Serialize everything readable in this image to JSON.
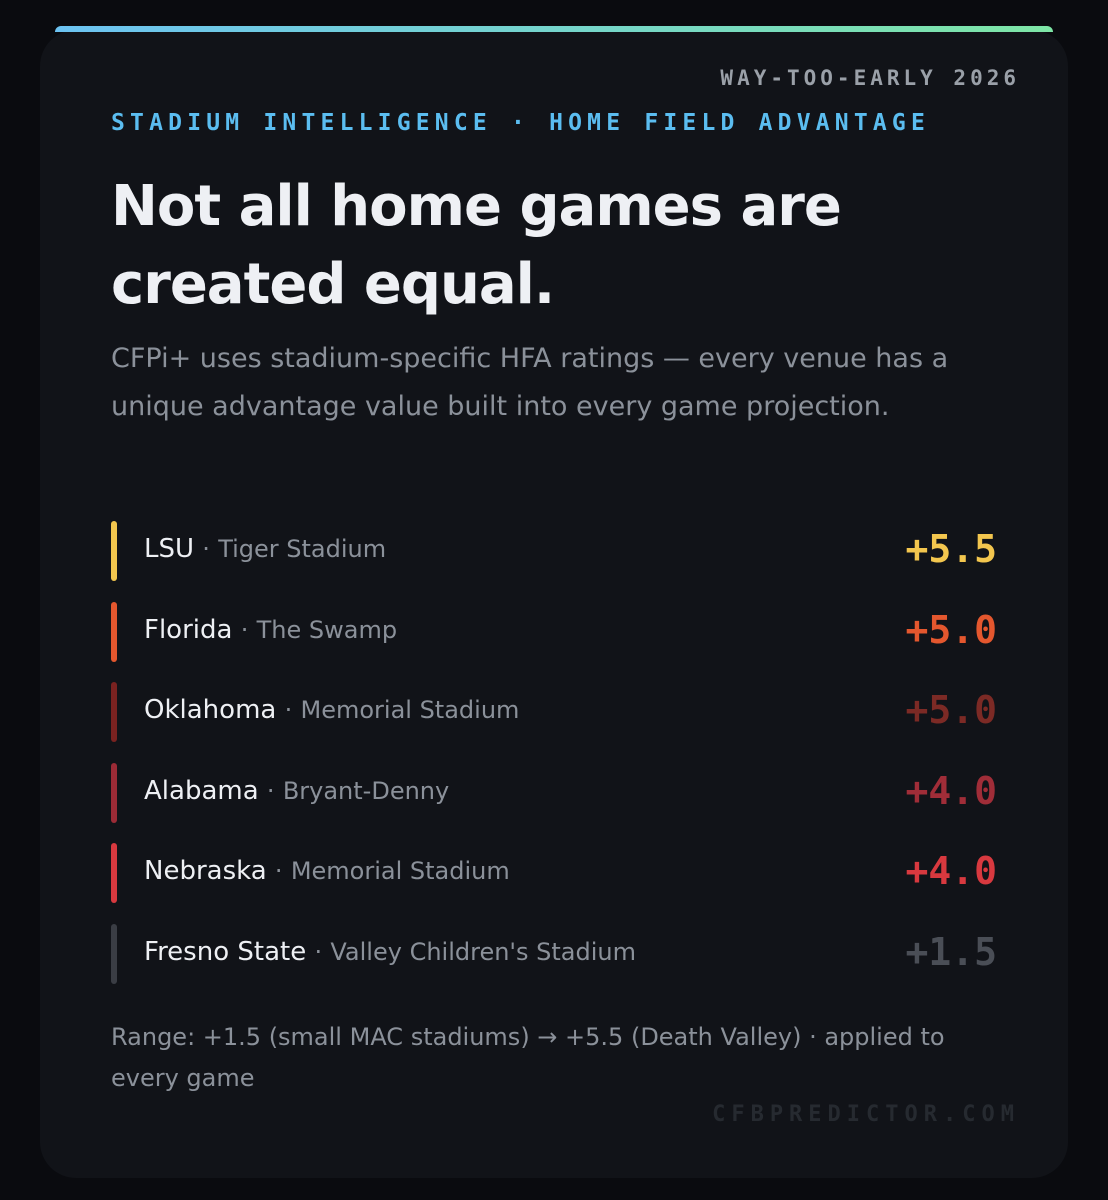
{
  "header": {
    "eyebrow": "WAY-TOO-EARLY 2026",
    "kicker": "STADIUM INTELLIGENCE · HOME FIELD ADVANTAGE",
    "title_lines": [
      "Not all home games are",
      "created equal."
    ],
    "description": "CFPi+ uses stadium-specific HFA ratings — every venue has a unique advantage value built into every game projection."
  },
  "separator": "·",
  "rows": [
    {
      "team": "LSU",
      "venue": "Tiger Stadium",
      "value": "+5.5",
      "bar_color": "#f3c64e",
      "value_color": "#f3c64e"
    },
    {
      "team": "Florida",
      "venue": "The Swamp",
      "value": "+5.0",
      "bar_color": "#e4572e",
      "value_color": "#e4572e"
    },
    {
      "team": "Oklahoma",
      "venue": "Memorial Stadium",
      "value": "+5.0",
      "bar_color": "#7a2220",
      "value_color": "#7c2a25"
    },
    {
      "team": "Alabama",
      "venue": "Bryant-Denny",
      "value": "+4.0",
      "bar_color": "#9c2b36",
      "value_color": "#a02d38"
    },
    {
      "team": "Nebraska",
      "venue": "Memorial Stadium",
      "value": "+4.0",
      "bar_color": "#d8393f",
      "value_color": "#d8393f"
    },
    {
      "team": "Fresno State",
      "venue": "Valley Children's Stadium",
      "value": "+1.5",
      "bar_color": "#3a3d44",
      "value_color": "#4a4e56"
    }
  ],
  "footer": {
    "note": "Range: +1.5 (small MAC stadiums) → +5.5 (Death Valley) · applied to every game",
    "brand": "CFBPREDICTOR.COM"
  }
}
